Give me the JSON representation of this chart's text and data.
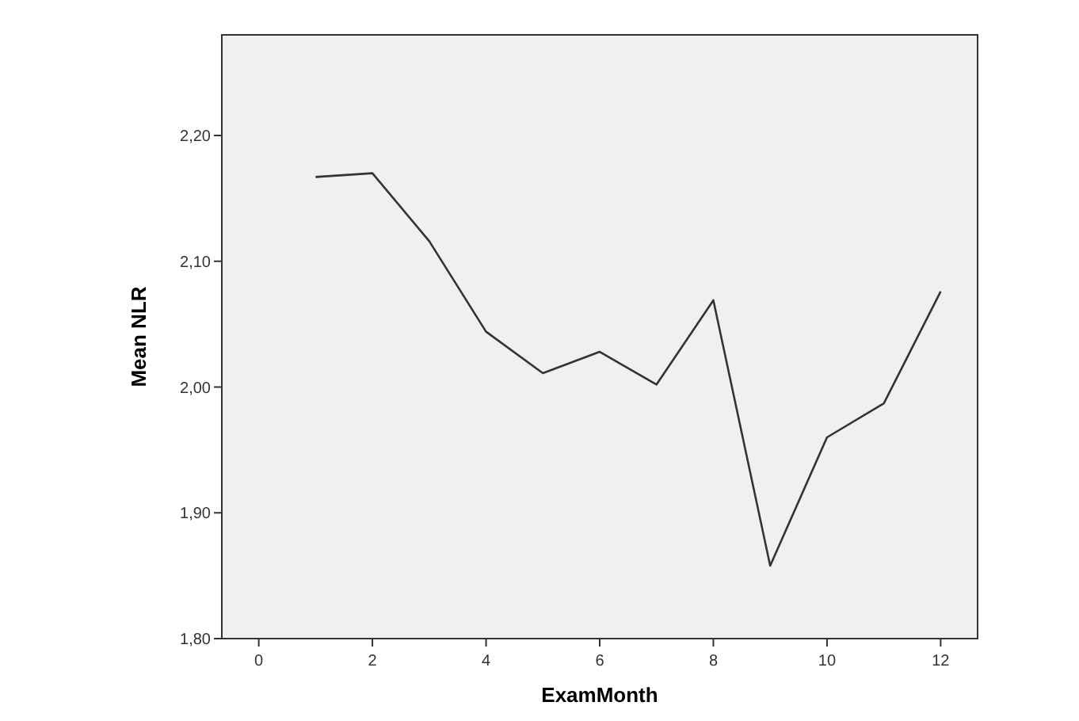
{
  "chart_data": {
    "type": "line",
    "xlabel": "ExamMonth",
    "ylabel": "Mean NLR",
    "x": [
      1,
      2,
      3,
      4,
      5,
      6,
      7,
      8,
      9,
      10,
      11,
      12
    ],
    "series": [
      {
        "color": "#333333",
        "values": [
          2.167,
          2.17,
          2.116,
          2.044,
          2.011,
          2.028,
          2.002,
          2.069,
          1.858,
          1.96,
          1.987,
          2.076
        ]
      }
    ],
    "xlim": [
      -0.65,
      12.65
    ],
    "xticks": [
      0,
      2,
      4,
      6,
      8,
      10,
      12
    ],
    "ylim": [
      1.8,
      2.28
    ],
    "yticks": [
      {
        "value": 1.8,
        "label": "1,80"
      },
      {
        "value": 1.9,
        "label": "1,90"
      },
      {
        "value": 2.0,
        "label": "2,00"
      },
      {
        "value": 2.1,
        "label": "2,10"
      },
      {
        "value": 2.2,
        "label": "2,20"
      }
    ],
    "grid": false,
    "line_style": "solid",
    "marker": "none"
  }
}
